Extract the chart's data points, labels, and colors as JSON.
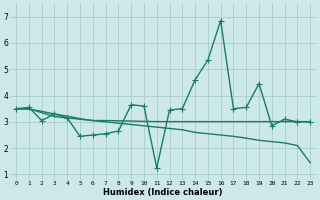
{
  "xlabel": "Humidex (Indice chaleur)",
  "background_color": "#cce8e8",
  "line_color": "#1a7a6e",
  "grid_color": "#aacccc",
  "xlim": [
    -0.5,
    23.5
  ],
  "ylim": [
    0.8,
    7.5
  ],
  "xtick_labels": [
    "0",
    "1",
    "2",
    "3",
    "4",
    "5",
    "6",
    "7",
    "8",
    "9",
    "10",
    "11",
    "12",
    "13",
    "14",
    "15",
    "16",
    "17",
    "18",
    "19",
    "20",
    "21",
    "22",
    "23"
  ],
  "yticks": [
    1,
    2,
    3,
    4,
    5,
    6,
    7
  ],
  "series1_x": [
    0,
    1,
    2,
    3,
    4,
    5,
    6,
    7,
    8,
    9,
    10,
    11,
    12,
    13,
    14,
    15,
    16,
    17,
    18,
    19,
    20,
    21,
    22,
    23
  ],
  "series1_y": [
    3.5,
    3.55,
    3.05,
    3.3,
    3.15,
    2.45,
    2.5,
    2.55,
    2.65,
    3.65,
    3.6,
    1.25,
    3.45,
    3.5,
    4.6,
    5.35,
    6.85,
    3.5,
    3.55,
    4.45,
    2.85,
    3.1,
    3.0,
    3.0
  ],
  "series2_x": [
    0,
    1,
    2,
    3,
    4,
    5,
    6,
    7,
    8,
    9,
    10,
    11,
    12,
    13,
    14,
    15,
    16,
    17,
    18,
    19,
    20,
    21,
    22,
    23
  ],
  "series2_y": [
    3.5,
    3.48,
    3.4,
    3.3,
    3.22,
    3.12,
    3.05,
    3.0,
    2.95,
    2.9,
    2.85,
    2.8,
    2.75,
    2.7,
    2.6,
    2.55,
    2.5,
    2.45,
    2.38,
    2.3,
    2.25,
    2.2,
    2.1,
    1.45
  ],
  "series3_x": [
    0,
    1,
    2,
    3,
    4,
    5,
    6,
    7,
    8,
    9,
    10,
    11,
    12,
    13,
    14,
    15,
    16,
    17,
    18,
    19,
    20,
    21,
    22,
    23
  ],
  "series3_y": [
    3.5,
    3.5,
    3.35,
    3.2,
    3.15,
    3.1,
    3.05,
    3.05,
    3.04,
    3.03,
    3.02,
    3.01,
    3.01,
    3.01,
    3.01,
    3.01,
    3.01,
    3.01,
    3.01,
    3.01,
    3.01,
    3.01,
    3.01,
    3.01
  ],
  "marker_size": 4,
  "line_width": 1.0
}
